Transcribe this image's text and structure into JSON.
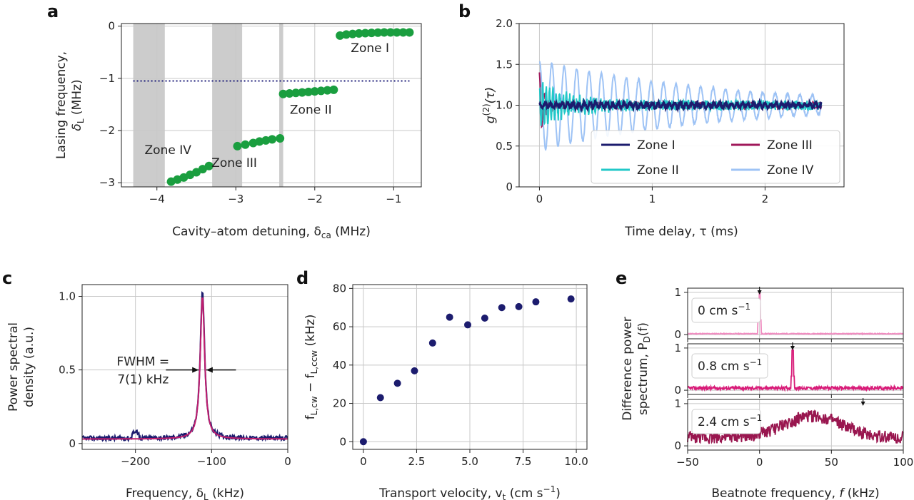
{
  "panels": [
    "a",
    "b",
    "c",
    "d",
    "e"
  ],
  "chart_data": [
    {
      "panel": "a",
      "type": "scatter",
      "xlabel": "Cavity–atom detuning, δ",
      "xlabel_sub": "ca",
      "xlabel_unit": " (MHz)",
      "ylabel_line1": "Lasing frequency,",
      "ylabel_line2": "δ",
      "ylabel_sub": "L",
      "ylabel_unit": " (MHz)",
      "xlim": [
        -4.45,
        -0.65
      ],
      "ylim": [
        -3.08,
        0.05
      ],
      "xticks": [
        -4,
        -3,
        -2,
        -1
      ],
      "xtick_labels": [
        "−4",
        "−3",
        "−2",
        "−1"
      ],
      "yticks": [
        0,
        -1,
        -2,
        -3
      ],
      "ytick_labels": [
        "0",
        "−1",
        "−2",
        "−3"
      ],
      "point_color": "#1a9e3f",
      "dotted_line_y": -1.05,
      "dotted_line_color": "#1c1c7a",
      "shaded_regions": [
        [
          -4.3,
          -3.9
        ],
        [
          -3.3,
          -2.92
        ],
        [
          -2.45,
          -2.4
        ]
      ],
      "zones": [
        {
          "name": "Zone I",
          "x": [
            -1.68,
            -1.6,
            -1.52,
            -1.44,
            -1.36,
            -1.28,
            -1.2,
            -1.12,
            -1.04,
            -0.96,
            -0.88,
            -0.8
          ],
          "y": [
            -0.18,
            -0.16,
            -0.15,
            -0.14,
            -0.135,
            -0.13,
            -0.125,
            -0.12,
            -0.12,
            -0.12,
            -0.12,
            -0.12
          ]
        },
        {
          "name": "Zone II",
          "x": [
            -2.4,
            -2.32,
            -2.24,
            -2.16,
            -2.08,
            -2.0,
            -1.92,
            -1.84,
            -1.76
          ],
          "y": [
            -1.3,
            -1.29,
            -1.28,
            -1.27,
            -1.26,
            -1.25,
            -1.24,
            -1.23,
            -1.22
          ]
        },
        {
          "name": "Zone III",
          "x": [
            -2.98,
            -2.88,
            -2.78,
            -2.7,
            -2.62,
            -2.54,
            -2.44
          ],
          "y": [
            -2.3,
            -2.27,
            -2.24,
            -2.21,
            -2.19,
            -2.17,
            -2.15
          ]
        },
        {
          "name": "Zone IV",
          "x": [
            -3.82,
            -3.74,
            -3.66,
            -3.58,
            -3.5,
            -3.42,
            -3.34
          ],
          "y": [
            -2.98,
            -2.94,
            -2.9,
            -2.85,
            -2.8,
            -2.74,
            -2.68
          ]
        }
      ],
      "annotations": [
        {
          "text": "Zone I",
          "x": -1.3,
          "y": -0.5
        },
        {
          "text": "Zone II",
          "x": -2.05,
          "y": -1.68
        },
        {
          "text": "Zone III",
          "x": -3.02,
          "y": -2.7
        },
        {
          "text": "Zone IV",
          "x": -3.86,
          "y": -2.45
        }
      ]
    },
    {
      "panel": "b",
      "type": "line",
      "xlabel": "Time delay, τ (ms)",
      "ylabel": "g(2)(τ)",
      "ylabel_main": "g",
      "ylabel_sup": "(2)",
      "ylabel_arg": "(τ)",
      "xlim": [
        -0.18,
        2.7
      ],
      "ylim": [
        0,
        2.0
      ],
      "xticks": [
        0,
        1,
        2
      ],
      "xtick_labels": [
        "0",
        "1",
        "2"
      ],
      "yticks": [
        0,
        0.5,
        1.0,
        1.5,
        2.0
      ],
      "ytick_labels": [
        "0",
        "0.5",
        "1.0",
        "1.5",
        "2.0"
      ],
      "legend_position": "lower-right",
      "series": [
        {
          "name": "Zone I",
          "color": "#1c1c6e",
          "amplitude": 0.03,
          "period_ms": 0.05,
          "decay_ms": 10.0,
          "x_end": 2.5
        },
        {
          "name": "Zone II",
          "color": "#22c8c8",
          "amplitude": 0.25,
          "period_ms": 0.03,
          "decay_ms": 0.3,
          "x_end": 2.5
        },
        {
          "name": "Zone III",
          "color": "#a0185a",
          "amplitude": 0.4,
          "period_ms": 0.045,
          "decay_ms": 0.05,
          "x_end": 2.5
        },
        {
          "name": "Zone IV",
          "color": "#9ec3f5",
          "amplitude": 0.55,
          "period_ms": 0.11,
          "decay_ms": 1.6,
          "x_end": 2.5
        }
      ]
    },
    {
      "panel": "c",
      "type": "line",
      "xlabel": "Frequency, δ",
      "xlabel_sub": "L",
      "xlabel_unit": " (kHz)",
      "ylabel_line1": "Power spectral",
      "ylabel_line2": "density (a.u.)",
      "xlim": [
        -270,
        0
      ],
      "ylim": [
        -0.04,
        1.08
      ],
      "xticks": [
        -200,
        -100,
        0
      ],
      "xtick_labels": [
        "−200",
        "−100",
        "0"
      ],
      "yticks": [
        0,
        0.5,
        1.0
      ],
      "ytick_labels": [
        "0",
        "0.5",
        "1.0"
      ],
      "center_khz": -112,
      "fwhm_khz": 7,
      "data_color": "#1c1c6e",
      "fit_color": "#c01e6e",
      "annotation_line1": "FWHM =",
      "annotation_line2": "7(1) kHz"
    },
    {
      "panel": "d",
      "type": "scatter",
      "xlabel": "Transport velocity, v",
      "xlabel_sub": "t",
      "xlabel_unit": " (cm s",
      "xlabel_sup": "−1",
      "xlabel_close": ")",
      "ylabel": "f_L,cw − f_L,ccw (kHz)",
      "ylabel_a": "f",
      "ylabel_a_sub": "L,cw",
      "ylabel_mid": " − f",
      "ylabel_b_sub": "L,ccw",
      "ylabel_unit": " (kHz)",
      "xlim": [
        -0.5,
        10.5
      ],
      "ylim": [
        -4,
        82
      ],
      "xticks": [
        0,
        2.5,
        5.0,
        7.5,
        10.0
      ],
      "xtick_labels": [
        "0",
        "2.5",
        "5.0",
        "7.5",
        "10.0"
      ],
      "yticks": [
        0,
        20,
        40,
        60,
        80
      ],
      "ytick_labels": [
        "0",
        "20",
        "40",
        "60",
        "80"
      ],
      "point_color": "#1c1c6e",
      "x": [
        0,
        0.8,
        1.6,
        2.4,
        3.25,
        4.05,
        4.9,
        5.7,
        6.5,
        7.3,
        8.1,
        9.75
      ],
      "y": [
        0,
        23,
        30.5,
        37,
        51.5,
        65,
        61,
        64.5,
        70,
        70.5,
        73,
        74.5
      ]
    },
    {
      "panel": "e",
      "type": "line",
      "xlabel": "Beatnote frequency, f (kHz)",
      "xlabel_pre": "Beatnote frequency, ",
      "xlabel_var": "f",
      "xlabel_unit": " (kHz)",
      "ylabel_line1": "Difference power",
      "ylabel_line2": "spectrum, P",
      "ylabel_sub": "D",
      "ylabel_arg": "(f)",
      "xlim": [
        -50,
        100
      ],
      "xticks": [
        -50,
        0,
        50,
        100
      ],
      "xtick_labels": [
        "−50",
        "0",
        "50",
        "100"
      ],
      "sub_ylim": [
        -0.1,
        1.1
      ],
      "sub_yticks": [
        0,
        1
      ],
      "sub_ytick_labels": [
        "0",
        "1"
      ],
      "subplots": [
        {
          "label": "0 cm s",
          "label_sup": "−1",
          "velocity_cm_s": 0,
          "color": "#f08cc0",
          "peak_khz": 0,
          "peak_height": 1.0,
          "baseline": 0.02,
          "noise": 0.01,
          "broad": false,
          "arrow_khz": 0
        },
        {
          "label": "0.8 cm s",
          "label_sup": "−1",
          "velocity_cm_s": 0.8,
          "color": "#d81b78",
          "peak_khz": 23,
          "peak_height": 0.95,
          "baseline": 0.05,
          "noise": 0.04,
          "broad": false,
          "arrow_khz": 23
        },
        {
          "label": "2.4 cm s",
          "label_sup": "−1",
          "velocity_cm_s": 2.4,
          "color": "#99164f",
          "peak_khz": 37,
          "peak_height": 0.5,
          "baseline": 0.2,
          "noise": 0.15,
          "broad": true,
          "arrow_khz": 72
        }
      ]
    }
  ]
}
